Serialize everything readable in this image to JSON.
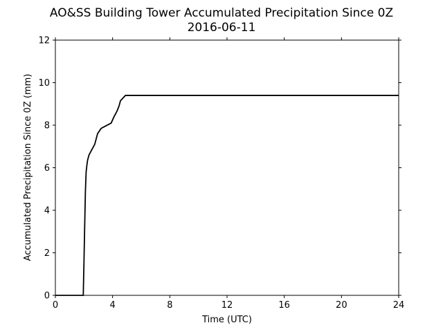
{
  "chart_data": {
    "type": "line",
    "title": "AO&SS Building Tower Accumulated Precipitation Since 0Z",
    "subtitle": "2016-06-11",
    "xlabel": "Time (UTC)",
    "ylabel": "Accumulated Precipitation Since 0Z (mm)",
    "xlim": [
      0,
      24
    ],
    "ylim": [
      0,
      12
    ],
    "xticks": [
      0,
      4,
      8,
      12,
      16,
      20,
      24
    ],
    "yticks": [
      0,
      2,
      4,
      6,
      8,
      10,
      12
    ],
    "grid": false,
    "legend": "none",
    "series_color": "#000000",
    "series": [
      {
        "x": [
          0,
          1.95,
          2.0,
          2.05,
          2.1,
          2.15,
          2.2,
          2.25,
          2.35,
          2.55,
          2.75,
          2.95,
          3.2,
          3.9,
          4.1,
          4.3,
          4.45,
          4.55,
          4.9,
          24
        ],
        "y": [
          0,
          0,
          1.6,
          3.3,
          4.9,
          5.8,
          6.1,
          6.35,
          6.6,
          6.85,
          7.1,
          7.6,
          7.85,
          8.1,
          8.4,
          8.65,
          8.9,
          9.15,
          9.4,
          9.4
        ]
      }
    ]
  }
}
